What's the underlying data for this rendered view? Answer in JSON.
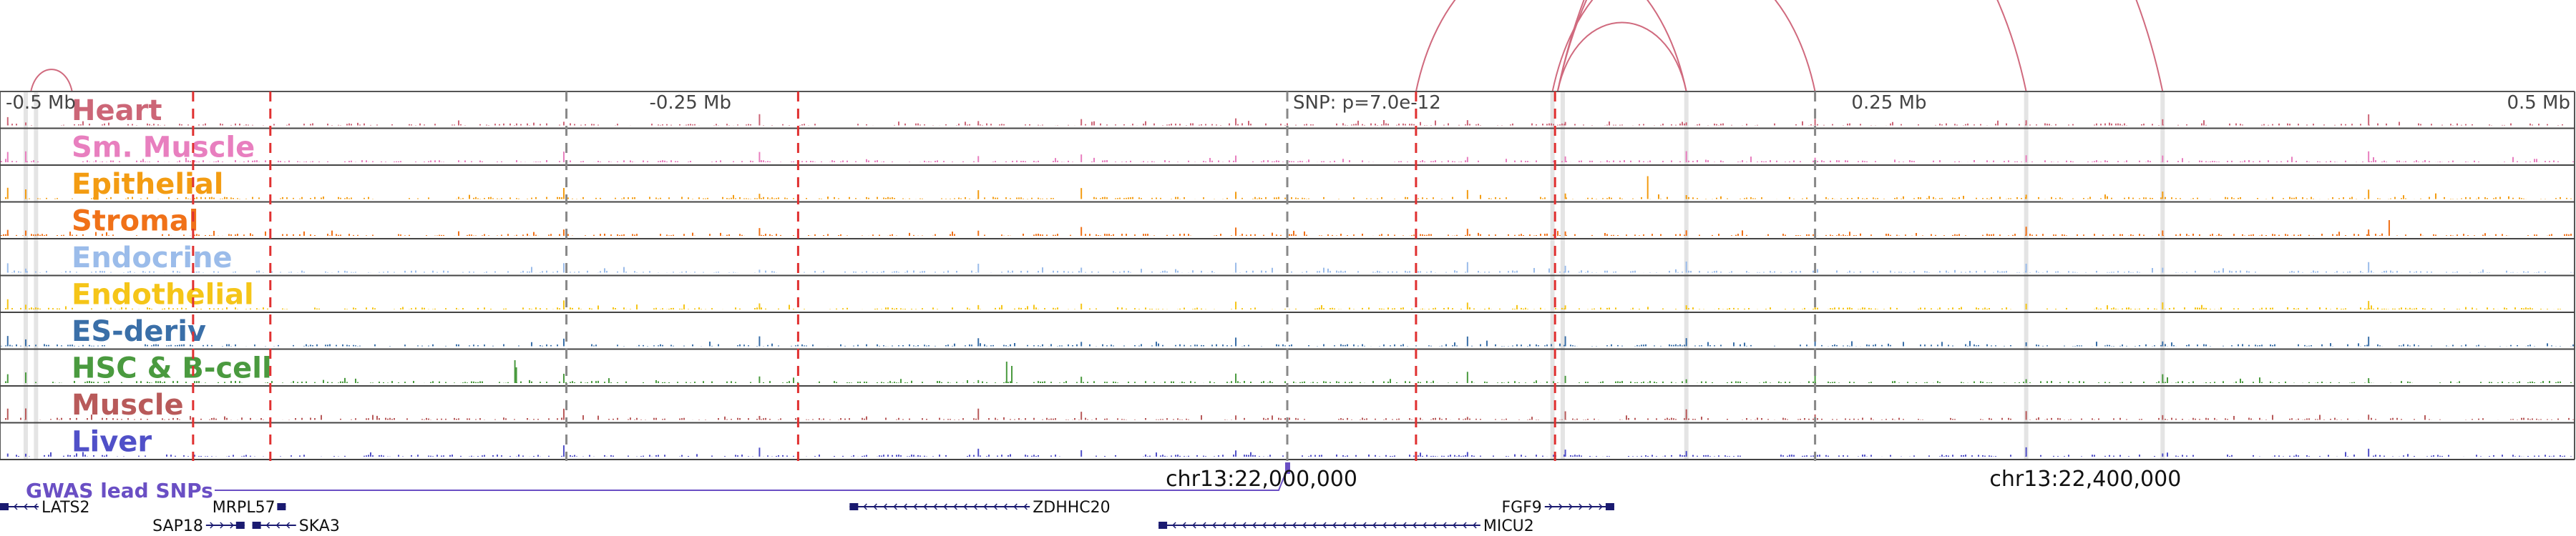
{
  "browser": {
    "axis": {
      "ticks": [
        {
          "label": "-0.5 Mb",
          "pos": -0.5,
          "anchor": "start"
        },
        {
          "label": "-0.25 Mb",
          "pos": -0.25,
          "anchor": "start"
        },
        {
          "label": "SNP: p=7.0e-12",
          "pos": 0.0,
          "anchor": "start"
        },
        {
          "label": "0.25 Mb",
          "pos": 0.25,
          "anchor": "end"
        },
        {
          "label": "0.5 Mb",
          "pos": 0.5,
          "anchor": "end"
        }
      ]
    },
    "lead_snp": {
      "label": "SNP: p=7.0e-12",
      "p_value": "7.0e-12",
      "pos": 0.0
    },
    "tracks": [
      {
        "name": "Heart",
        "color": "#cc6677"
      },
      {
        "name": "Sm. Muscle",
        "color": "#e87fbf"
      },
      {
        "name": "Epithelial",
        "color": "#f39c12"
      },
      {
        "name": "Stromal",
        "color": "#f07118"
      },
      {
        "name": "Endocrine",
        "color": "#9bbcea"
      },
      {
        "name": "Endothelial",
        "color": "#f5c518"
      },
      {
        "name": "ES-deriv",
        "color": "#3a6fa8"
      },
      {
        "name": "HSC & B-cell",
        "color": "#4a9a3f"
      },
      {
        "name": "Muscle",
        "color": "#b85a5a"
      },
      {
        "name": "Liver",
        "color": "#5050c8"
      }
    ],
    "gwas": {
      "label": "GWAS lead SNPs",
      "color": "#6a4fc4"
    },
    "chrom_labels": [
      {
        "label": "chr13:22,000,000",
        "pos": -0.01
      },
      {
        "label": "chr13:22,400,000",
        "pos": 0.31
      }
    ],
    "genes": [
      {
        "name": "LATS2",
        "start": -0.5,
        "end": -0.485,
        "strand": "-",
        "row": 0,
        "label_side": "right"
      },
      {
        "name": "MRPL57",
        "start": -0.392,
        "end": -0.389,
        "strand": "+",
        "row": 0,
        "label_side": "left"
      },
      {
        "name": "SAP18",
        "start": -0.42,
        "end": -0.405,
        "strand": "+",
        "row": 1,
        "label_side": "left"
      },
      {
        "name": "SKA3",
        "start": -0.402,
        "end": -0.385,
        "strand": "-",
        "row": 1,
        "label_side": "right"
      },
      {
        "name": "ZDHHC20",
        "start": -0.17,
        "end": -0.1,
        "strand": "-",
        "row": 0,
        "label_side": "right"
      },
      {
        "name": "MICU2",
        "start": -0.05,
        "end": 0.075,
        "strand": "-",
        "row": 1,
        "label_side": "right"
      },
      {
        "name": "FGF9",
        "start": 0.1,
        "end": 0.127,
        "strand": "+",
        "row": 0,
        "label_side": "left"
      }
    ],
    "red_markers": [
      -0.425,
      -0.395,
      -0.19,
      0.05,
      0.104
    ],
    "grey_markers": [
      -0.28,
      0.0,
      0.205
    ],
    "highlights": [
      -0.49,
      -0.486,
      0.103,
      0.107,
      0.155,
      0.287,
      0.34
    ],
    "arcs": [
      {
        "from": -0.488,
        "to": -0.472
      },
      {
        "from": 0.05,
        "to": 0.155
      },
      {
        "from": 0.105,
        "to": 0.155
      },
      {
        "from": 0.103,
        "to": 0.205
      },
      {
        "from": 0.105,
        "to": 0.287
      },
      {
        "from": 0.105,
        "to": 0.34
      }
    ]
  }
}
